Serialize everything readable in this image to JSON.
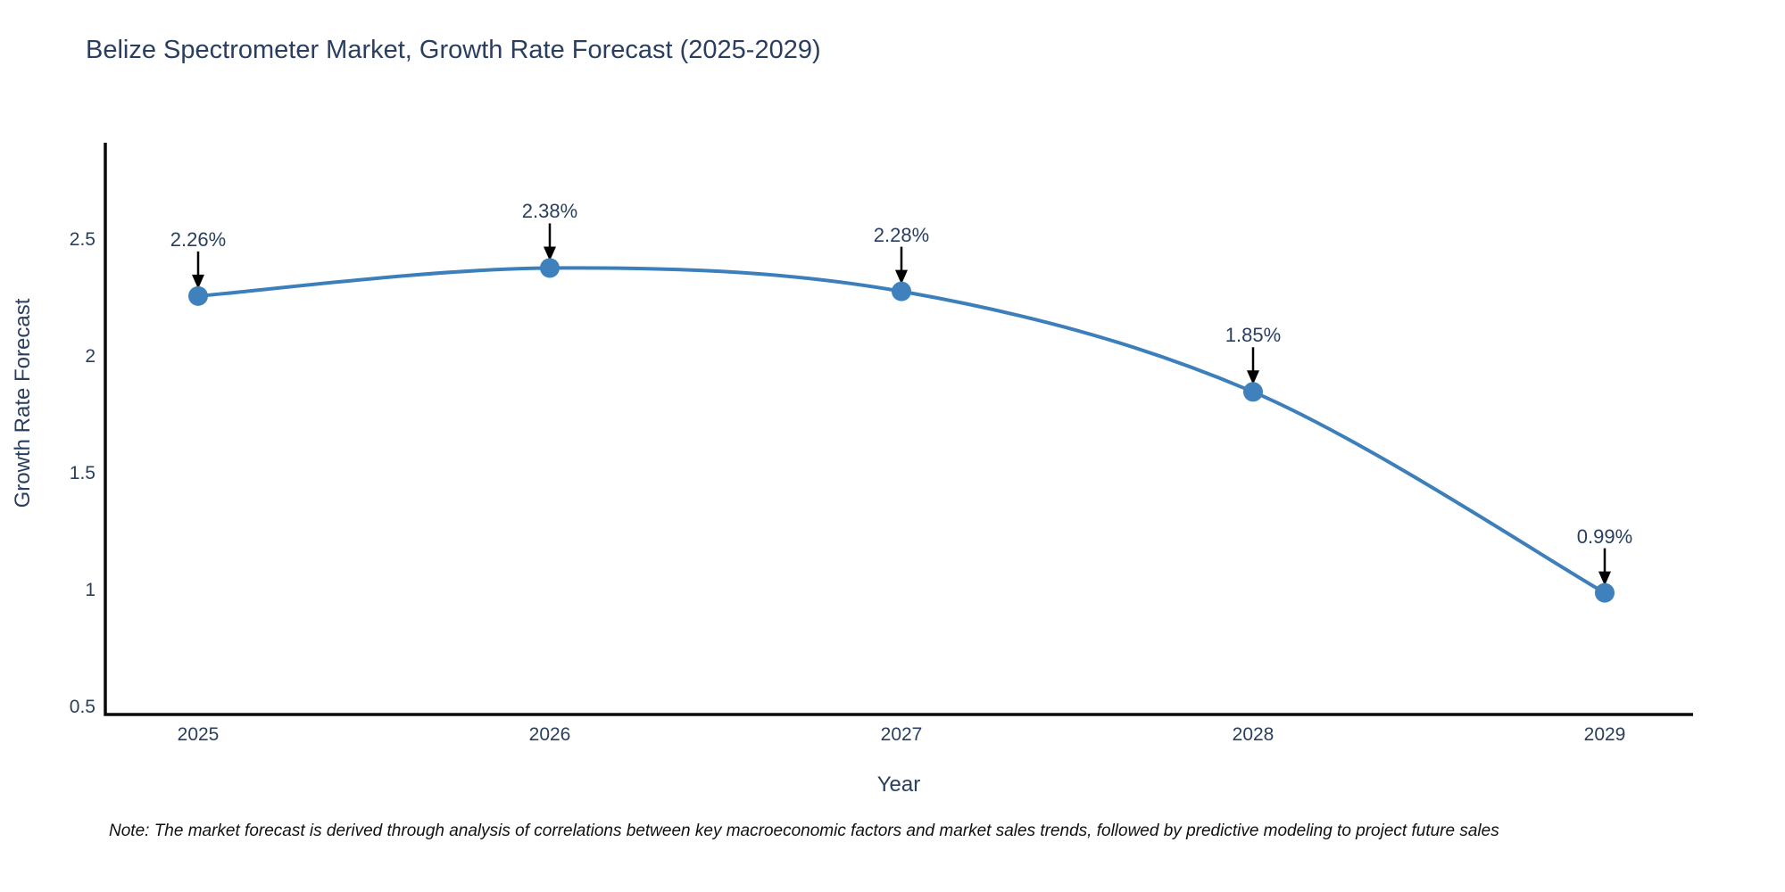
{
  "title": {
    "text": "Belize Spectrometer Market, Growth Rate Forecast (2025-2029)",
    "color": "#2a3f5f"
  },
  "note": {
    "text": "Note: The market forecast is derived through analysis of correlations between key macroeconomic factors and market sales trends, followed by predictive modeling to project future sales"
  },
  "chart_data": {
    "type": "line",
    "title": "Belize Spectrometer Market, Growth Rate Forecast (2025-2029)",
    "xlabel": "Year",
    "ylabel": "Growth Rate Forecast",
    "categories": [
      "2025",
      "2026",
      "2027",
      "2028",
      "2029"
    ],
    "series": [
      {
        "name": "Growth Rate Forecast",
        "values": [
          2.26,
          2.38,
          2.28,
          1.85,
          0.99
        ]
      }
    ],
    "point_labels": [
      "2.26%",
      "2.38%",
      "2.28%",
      "1.85%",
      "0.99%"
    ],
    "ytick_labels": [
      "0.5",
      "1",
      "1.5",
      "2",
      "2.5"
    ],
    "ytick_values": [
      0.5,
      1.0,
      1.5,
      2.0,
      2.5
    ],
    "ylim": [
      0.5,
      2.95
    ],
    "grid": false,
    "legend": "none",
    "line_shape": "spline",
    "line_color": "#3d7fba",
    "marker_color": "#3f81bc",
    "axis_color": "#0a0a0a",
    "annotation_arrow_color": "#000000",
    "tick_label_color": "#2a3f5f"
  }
}
